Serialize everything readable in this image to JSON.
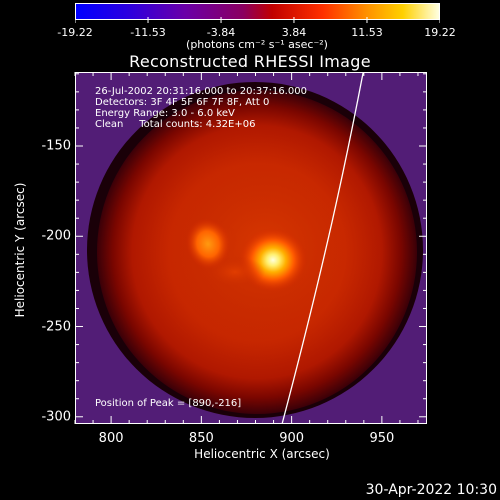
{
  "colorbar": {
    "tick_labels": [
      "-19.22",
      "-11.53",
      "-3.84",
      "3.84",
      "11.53",
      "19.22"
    ],
    "tick_values": [
      -19.22,
      -11.53,
      -3.84,
      3.84,
      11.53,
      19.22
    ],
    "units_label": "(photons cm⁻² s⁻¹ asec⁻²)",
    "range": [
      -19.22,
      19.22
    ]
  },
  "plot": {
    "title": "Reconstructed RHESSI Image",
    "info_lines": [
      "26-Jul-2002 20:31:16.000 to 20:37:16.000",
      "Detectors: 3F 4F 5F 6F 7F 8F, Att 0",
      "Energy Range: 3.0 - 6.0 keV",
      "Clean     Total counts: 4.32E+06"
    ],
    "peak_text": "Position of Peak = [890,-216]",
    "xlabel": "Heliocentric X (arcsec)",
    "ylabel": "Heliocentric Y (arcsec)",
    "x_ticks": [
      "800",
      "850",
      "900",
      "950"
    ],
    "x_tick_values": [
      800,
      850,
      900,
      950
    ],
    "y_ticks": [
      "-150",
      "-200",
      "-250",
      "-300"
    ],
    "y_tick_values": [
      -150,
      -200,
      -250,
      -300
    ],
    "x_range": [
      780,
      975
    ],
    "y_range": [
      -304,
      -109
    ],
    "peak_position": [
      890,
      -216
    ]
  },
  "footer": {
    "timestamp": "30-Apr-2022 10:30"
  }
}
